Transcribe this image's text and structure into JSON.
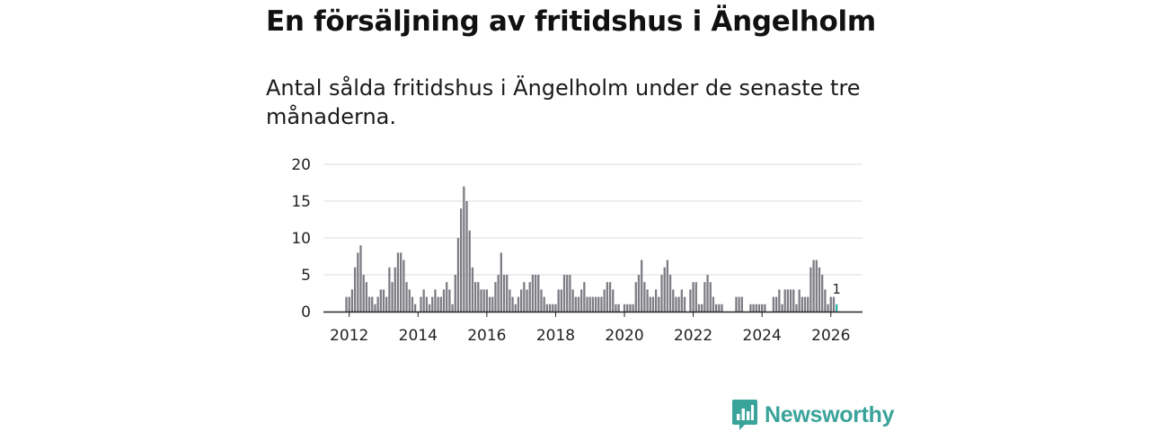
{
  "title": "En försäljning av fritidshus i Ängelholm",
  "subtitle": "Antal sålda fritidshus i Ängelholm under de senaste tre månaderna.",
  "brand": {
    "name": "Newsworthy",
    "color": "#3aa39a",
    "icon": "bar-chart-badge-icon"
  },
  "colors": {
    "bar": "#7c7c84",
    "highlight": "#2fb5a8",
    "grid": "#dddddd",
    "axis": "#222222"
  },
  "chart_data": {
    "type": "bar",
    "title": "En försäljning av fritidshus i Ängelholm",
    "subtitle": "Antal sålda fritidshus i Ängelholm under de senaste tre månaderna.",
    "xlabel": "",
    "ylabel": "",
    "ylim": [
      0,
      20
    ],
    "yticks": [
      0,
      5,
      10,
      15,
      20
    ],
    "xlim": [
      2011.25,
      2026.92
    ],
    "xticks": [
      2012,
      2014,
      2016,
      2018,
      2020,
      2022,
      2024,
      2026
    ],
    "x_start": 2011.9167,
    "x_step": 0.08333,
    "grid": true,
    "highlight_label": "1",
    "values": [
      2,
      2,
      3,
      6,
      8,
      9,
      5,
      4,
      2,
      2,
      1,
      2,
      3,
      3,
      2,
      6,
      4,
      6,
      8,
      8,
      7,
      4,
      3,
      2,
      1,
      0,
      2,
      3,
      2,
      1,
      2,
      3,
      2,
      2,
      3,
      4,
      3,
      1,
      5,
      10,
      14,
      17,
      15,
      11,
      6,
      4,
      4,
      3,
      3,
      3,
      2,
      2,
      4,
      5,
      8,
      5,
      5,
      3,
      2,
      1,
      2,
      3,
      4,
      3,
      4,
      5,
      5,
      5,
      3,
      2,
      1,
      1,
      1,
      1,
      3,
      3,
      5,
      5,
      5,
      3,
      2,
      2,
      3,
      4,
      2,
      2,
      2,
      2,
      2,
      2,
      3,
      4,
      4,
      3,
      1,
      1,
      0,
      1,
      1,
      1,
      1,
      4,
      5,
      7,
      4,
      3,
      2,
      2,
      3,
      2,
      5,
      6,
      7,
      5,
      3,
      2,
      2,
      3,
      2,
      0,
      3,
      4,
      4,
      1,
      1,
      4,
      5,
      4,
      2,
      1,
      1,
      1,
      0,
      0,
      0,
      0,
      2,
      2,
      2,
      0,
      0,
      1,
      1,
      1,
      1,
      1,
      1,
      0,
      0,
      2,
      2,
      3,
      1,
      3,
      3,
      3,
      3,
      1,
      3,
      2,
      2,
      2,
      6,
      7,
      7,
      6,
      5,
      3,
      1,
      2,
      2,
      1
    ]
  }
}
